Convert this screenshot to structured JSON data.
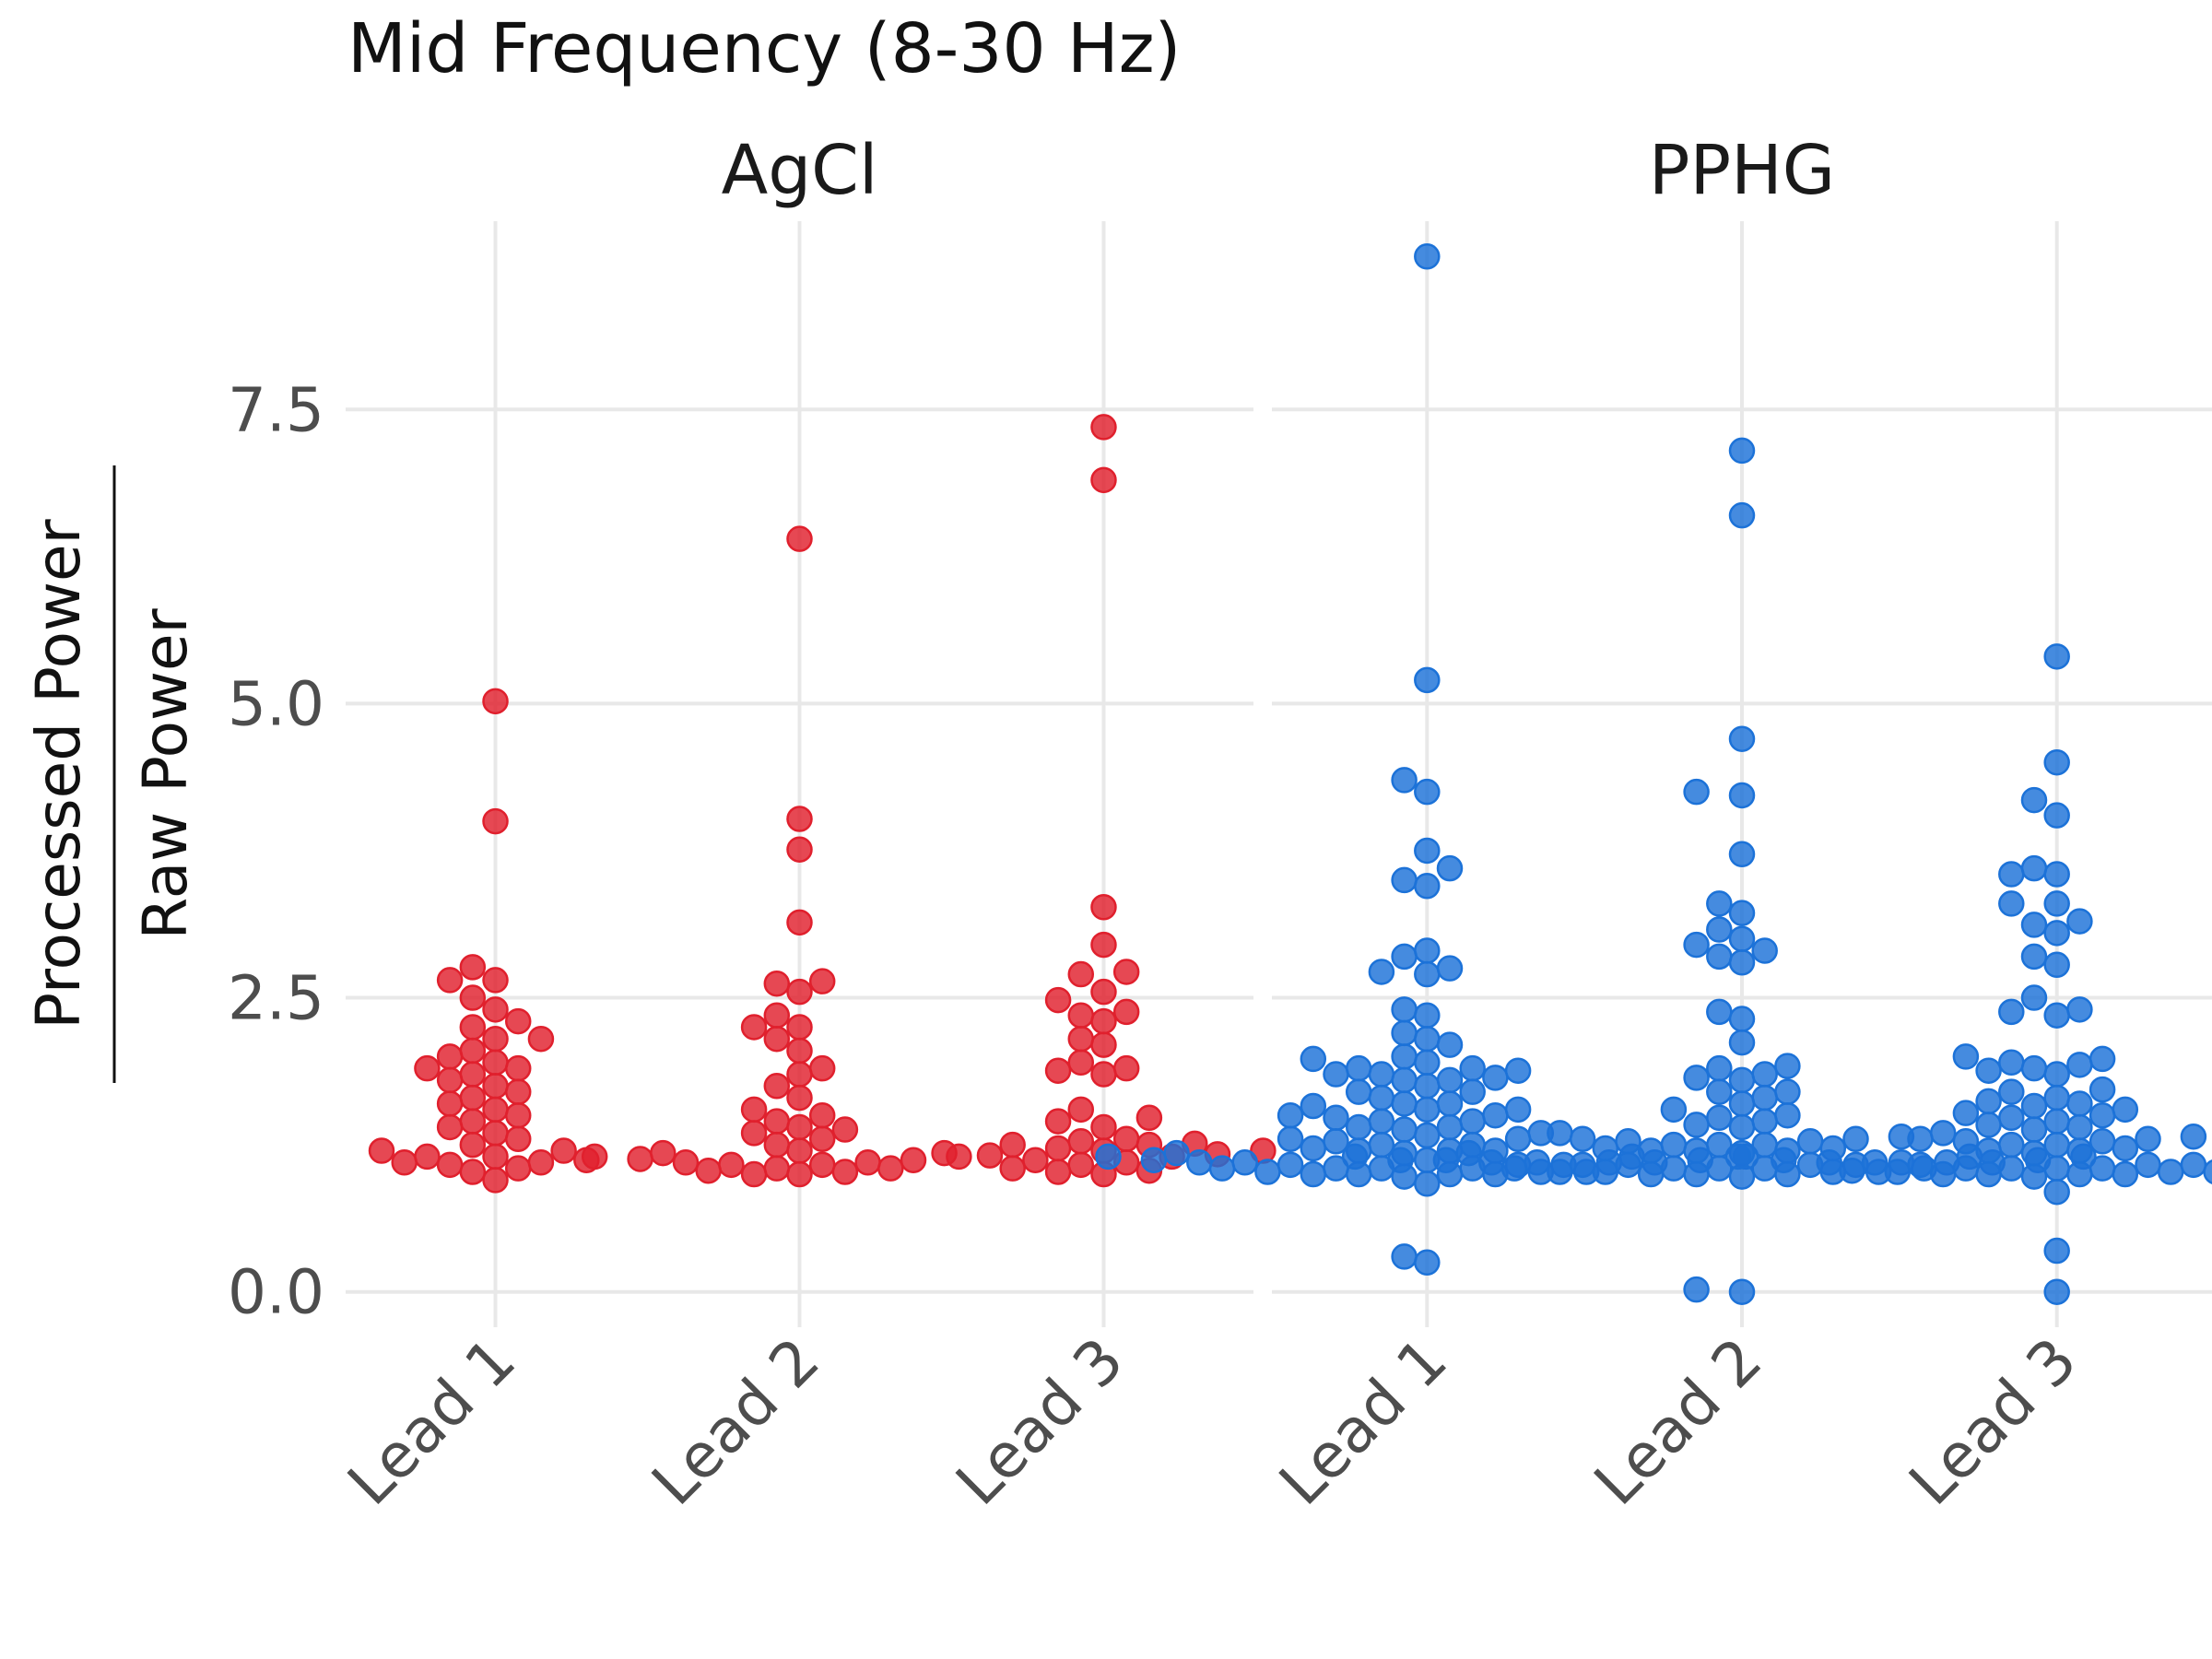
{
  "chart_data": {
    "type": "scatter",
    "title": "Mid Frequency (8-30 Hz)",
    "ylabel": {
      "numerator": "Processed Power",
      "denominator": "Raw Power"
    },
    "ylim": [
      -0.3,
      9.1
    ],
    "yticks": [
      0.0,
      2.5,
      5.0,
      7.5
    ],
    "ytick_labels": [
      "0.0",
      "2.5",
      "5.0",
      "7.5"
    ],
    "categories": [
      "Lead 1",
      "Lead 2",
      "Lead 3"
    ],
    "grid": true,
    "panels": [
      {
        "name": "AgCl",
        "color": "#e0202d",
        "series": [
          {
            "category": "Lead 1",
            "values": [
              5.02,
              4.0,
              2.76,
              2.65,
              2.65,
              2.5,
              2.4,
              2.3,
              2.25,
              2.15,
              2.15,
              2.05,
              2.0,
              1.95,
              1.9,
              1.9,
              1.85,
              1.8,
              1.75,
              1.7,
              1.65,
              1.6,
              1.55,
              1.5,
              1.45,
              1.4,
              1.35,
              1.3,
              1.25,
              1.2,
              1.2,
              1.15,
              1.15,
              1.12,
              1.1,
              1.1,
              1.08,
              1.05,
              1.02,
              0.95
            ]
          },
          {
            "category": "Lead 2",
            "values": [
              6.4,
              4.02,
              3.76,
              3.14,
              2.64,
              2.62,
              2.55,
              2.35,
              2.25,
              2.25,
              2.15,
              2.05,
              1.9,
              1.85,
              1.75,
              1.65,
              1.55,
              1.5,
              1.45,
              1.4,
              1.38,
              1.35,
              1.3,
              1.25,
              1.2,
              1.18,
              1.15,
              1.15,
              1.13,
              1.12,
              1.1,
              1.1,
              1.08,
              1.08,
              1.05,
              1.05,
              1.03,
              1.02,
              1.0,
              1.0
            ]
          },
          {
            "category": "Lead 3",
            "values": [
              7.35,
              6.9,
              3.27,
              2.95,
              2.72,
              2.7,
              2.55,
              2.48,
              2.38,
              2.35,
              2.3,
              2.15,
              2.1,
              1.95,
              1.9,
              1.88,
              1.85,
              1.55,
              1.48,
              1.45,
              1.4,
              1.3,
              1.28,
              1.26,
              1.25,
              1.25,
              1.22,
              1.2,
              1.2,
              1.18,
              1.17,
              1.16,
              1.15,
              1.12,
              1.1,
              1.08,
              1.05,
              1.03,
              1.02,
              1.0
            ]
          }
        ]
      },
      {
        "name": "PPHG",
        "color": "#1c72d8",
        "series": [
          {
            "category": "Lead 1",
            "values": [
              8.8,
              5.2,
              4.35,
              4.25,
              3.75,
              3.6,
              3.5,
              3.45,
              2.9,
              2.85,
              2.75,
              2.72,
              2.7,
              2.4,
              2.35,
              2.2,
              2.15,
              2.1,
              2.0,
              1.98,
              1.95,
              1.9,
              1.9,
              1.88,
              1.85,
              1.85,
              1.82,
              1.8,
              1.8,
              1.75,
              1.7,
              1.7,
              1.65,
              1.6,
              1.6,
              1.58,
              1.55,
              1.55,
              1.5,
              1.5,
              1.48,
              1.45,
              1.45,
              1.4,
              1.4,
              1.38,
              1.35,
              1.33,
              1.3,
              1.3,
              1.28,
              1.25,
              1.25,
              1.22,
              1.2,
              1.2,
              1.2,
              1.18,
              1.18,
              1.15,
              1.15,
              1.15,
              1.12,
              1.12,
              1.12,
              1.1,
              1.1,
              1.1,
              1.1,
              1.08,
              1.08,
              1.08,
              1.05,
              1.05,
              1.05,
              1.05,
              1.02,
              1.02,
              1.02,
              1.0,
              1.0,
              1.0,
              1.0,
              0.98,
              0.92,
              0.3,
              0.25
            ]
          },
          {
            "category": "Lead 2",
            "values": [
              7.15,
              6.6,
              4.7,
              4.25,
              4.22,
              3.72,
              3.3,
              3.22,
              3.08,
              3.0,
              2.95,
              2.9,
              2.85,
              2.8,
              2.38,
              2.32,
              2.12,
              1.92,
              1.9,
              1.85,
              1.82,
              1.8,
              1.7,
              1.7,
              1.65,
              1.6,
              1.55,
              1.5,
              1.48,
              1.45,
              1.42,
              1.4,
              1.35,
              1.32,
              1.3,
              1.3,
              1.28,
              1.28,
              1.25,
              1.25,
              1.25,
              1.22,
              1.22,
              1.2,
              1.2,
              1.2,
              1.18,
              1.18,
              1.15,
              1.15,
              1.15,
              1.12,
              1.12,
              1.12,
              1.1,
              1.1,
              1.1,
              1.1,
              1.1,
              1.08,
              1.08,
              1.08,
              1.08,
              1.05,
              1.05,
              1.05,
              1.05,
              1.05,
              1.02,
              1.02,
              1.02,
              1.02,
              1.0,
              1.0,
              1.0,
              0.98,
              0.02,
              0.0
            ]
          },
          {
            "category": "Lead 3",
            "values": [
              5.4,
              4.5,
              4.18,
              4.05,
              3.6,
              3.55,
              3.55,
              3.3,
              3.3,
              3.15,
              3.12,
              3.05,
              2.85,
              2.78,
              2.5,
              2.4,
              2.38,
              2.35,
              2.0,
              1.98,
              1.95,
              1.93,
              1.9,
              1.88,
              1.85,
              1.72,
              1.7,
              1.65,
              1.62,
              1.6,
              1.58,
              1.55,
              1.52,
              1.5,
              1.48,
              1.45,
              1.42,
              1.4,
              1.38,
              1.35,
              1.32,
              1.3,
              1.3,
              1.28,
              1.28,
              1.25,
              1.25,
              1.22,
              1.2,
              1.2,
              1.18,
              1.15,
              1.15,
              1.12,
              1.12,
              1.1,
              1.1,
              1.1,
              1.08,
              1.08,
              1.08,
              1.05,
              1.05,
              1.05,
              1.05,
              1.03,
              1.02,
              1.02,
              1.02,
              1.0,
              1.0,
              1.0,
              1.0,
              0.98,
              0.85,
              0.35,
              0.0
            ]
          }
        ]
      }
    ]
  }
}
